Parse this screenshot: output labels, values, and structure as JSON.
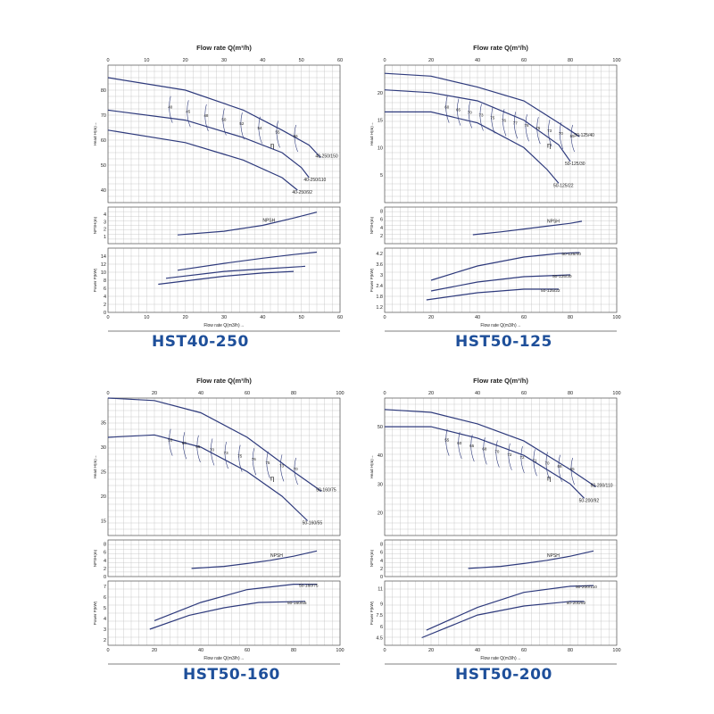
{
  "charts": [
    {
      "model": "HST40-250",
      "top_axis_title": "Flow rate Q(m³/h)",
      "bottom_axis_title": "Flow rate Q(m3/h)→",
      "head_axis_label": "Head H(m)→",
      "npsh_axis_label": "NPSH(m)",
      "power_axis_label": "Power P(kW)",
      "npsh_curve_label": "NPSH",
      "eta_label": "η",
      "x_ticks": [
        "0",
        "10",
        "20",
        "30",
        "40",
        "50",
        "60"
      ],
      "xmax": 60,
      "head_ticks": [
        "40",
        "50",
        "60",
        "70",
        "80"
      ],
      "head_range": [
        35,
        90
      ],
      "npsh_ticks": [
        "1",
        "2",
        "3",
        "4"
      ],
      "npsh_range": [
        0,
        5
      ],
      "power_ticks": [
        "0",
        "2",
        "4",
        "6",
        "8",
        "10",
        "12",
        "14"
      ],
      "power_range": [
        0,
        16
      ],
      "head_curves": [
        {
          "name": "40-250/150",
          "points": [
            [
              0,
              85
            ],
            [
              20,
              80
            ],
            [
              35,
              72
            ],
            [
              45,
              64
            ],
            [
              52,
              58
            ],
            [
              55,
              53
            ]
          ]
        },
        {
          "name": "40-250/110",
          "points": [
            [
              0,
              72
            ],
            [
              20,
              68
            ],
            [
              35,
              61
            ],
            [
              45,
              55
            ],
            [
              50,
              49
            ],
            [
              52,
              45
            ]
          ]
        },
        {
          "name": "40-250/92",
          "points": [
            [
              0,
              64
            ],
            [
              20,
              59
            ],
            [
              35,
              52
            ],
            [
              45,
              45
            ],
            [
              49,
              40
            ]
          ]
        }
      ],
      "efficiency_labels": [
        "40",
        "45",
        "48",
        "50",
        "52",
        "54",
        "55",
        "56"
      ],
      "npsh_curve": [
        [
          18,
          1.2
        ],
        [
          30,
          1.7
        ],
        [
          40,
          2.5
        ],
        [
          48,
          3.5
        ],
        [
          54,
          4.3
        ]
      ],
      "power_curves": [
        {
          "name": "",
          "points": [
            [
              18,
              10.5
            ],
            [
              30,
              12.2
            ],
            [
              40,
              13.5
            ],
            [
              48,
              14.4
            ],
            [
              54,
              15.0
            ]
          ]
        },
        {
          "name": "",
          "points": [
            [
              15,
              8.5
            ],
            [
              30,
              10.2
            ],
            [
              40,
              10.8
            ],
            [
              50,
              11.4
            ],
            [
              51,
              11.5
            ]
          ]
        },
        {
          "name": "",
          "points": [
            [
              13,
              7.0
            ],
            [
              30,
              9.0
            ],
            [
              40,
              9.8
            ],
            [
              48,
              10.2
            ]
          ]
        }
      ]
    },
    {
      "model": "HST50-125",
      "top_axis_title": "Flow rate Q(m³/h)",
      "bottom_axis_title": "Flow rate Q(m3/h)→",
      "head_axis_label": "Head H(m)→",
      "npsh_axis_label": "NPSH(m)",
      "power_axis_label": "Power P(kW)",
      "npsh_curve_label": "NPSH",
      "eta_label": "η",
      "x_ticks": [
        "0",
        "20",
        "40",
        "60",
        "80",
        "100"
      ],
      "xmax": 100,
      "head_ticks": [
        "5",
        "10",
        "15",
        "20"
      ],
      "head_range": [
        0,
        25
      ],
      "npsh_ticks": [
        "2",
        "4",
        "6",
        "8"
      ],
      "npsh_range": [
        0,
        9
      ],
      "power_ticks": [
        "1.2",
        "1.8",
        "2.4",
        "3",
        "3.6",
        "4.2"
      ],
      "power_range": [
        0.9,
        4.5
      ],
      "head_curves": [
        {
          "name": "50-125/40",
          "points": [
            [
              0,
              23.5
            ],
            [
              20,
              23.0
            ],
            [
              40,
              21.0
            ],
            [
              60,
              18.5
            ],
            [
              75,
              14.5
            ],
            [
              84,
              12.0
            ]
          ]
        },
        {
          "name": "50-125/30",
          "points": [
            [
              0,
              20.5
            ],
            [
              20,
              20.0
            ],
            [
              40,
              18.5
            ],
            [
              60,
              15.0
            ],
            [
              75,
              10.5
            ],
            [
              80,
              7.5
            ]
          ]
        },
        {
          "name": "50-125/22",
          "points": [
            [
              0,
              16.5
            ],
            [
              20,
              16.5
            ],
            [
              40,
              14.5
            ],
            [
              60,
              10.0
            ],
            [
              70,
              6.0
            ],
            [
              75,
              3.5
            ]
          ]
        }
      ],
      "efficiency_labels": [
        "60",
        "65",
        "70",
        "73",
        "75",
        "76",
        "77",
        "78",
        "75",
        "73",
        "70",
        "65"
      ],
      "npsh_curve": [
        [
          38,
          2.2
        ],
        [
          50,
          2.9
        ],
        [
          60,
          3.6
        ],
        [
          70,
          4.3
        ],
        [
          80,
          5.0
        ],
        [
          85,
          5.5
        ]
      ],
      "power_curves": [
        {
          "name": "50-125/40",
          "points": [
            [
              20,
              2.7
            ],
            [
              40,
              3.5
            ],
            [
              60,
              4.0
            ],
            [
              75,
              4.2
            ],
            [
              84,
              4.25
            ]
          ]
        },
        {
          "name": "50-125/30",
          "points": [
            [
              20,
              2.1
            ],
            [
              40,
              2.6
            ],
            [
              60,
              2.9
            ],
            [
              80,
              3.0
            ]
          ]
        },
        {
          "name": "50-125/22",
          "points": [
            [
              18,
              1.6
            ],
            [
              40,
              2.0
            ],
            [
              60,
              2.2
            ],
            [
              75,
              2.2
            ]
          ]
        }
      ]
    },
    {
      "model": "HST50-160",
      "top_axis_title": "Flow rate Q(m³/h)",
      "bottom_axis_title": "Flow rate Q(m3/h)→",
      "head_axis_label": "Head H(m)→",
      "npsh_axis_label": "NPSH(m)",
      "power_axis_label": "Power P(kW)",
      "npsh_curve_label": "NPSH",
      "eta_label": "η",
      "x_ticks": [
        "0",
        "20",
        "40",
        "60",
        "80",
        "100"
      ],
      "xmax": 100,
      "head_ticks": [
        "15",
        "20",
        "25",
        "30",
        "35"
      ],
      "head_range": [
        12,
        40
      ],
      "npsh_ticks": [
        "0",
        "2",
        "4",
        "6",
        "8"
      ],
      "npsh_range": [
        0,
        9
      ],
      "power_ticks": [
        "2",
        "3",
        "4",
        "5",
        "6",
        "7"
      ],
      "power_range": [
        1.5,
        7.5
      ],
      "head_curves": [
        {
          "name": "50-160/75",
          "points": [
            [
              0,
              40
            ],
            [
              20,
              39.5
            ],
            [
              40,
              37
            ],
            [
              60,
              32
            ],
            [
              80,
              25
            ],
            [
              92,
              21
            ]
          ]
        },
        {
          "name": "50-160/55",
          "points": [
            [
              0,
              32
            ],
            [
              20,
              32.5
            ],
            [
              40,
              30
            ],
            [
              60,
              25
            ],
            [
              75,
              20
            ],
            [
              86,
              15
            ]
          ]
        }
      ],
      "efficiency_labels": [
        "55",
        "60",
        "65",
        "70",
        "73",
        "75",
        "76",
        "75",
        "73",
        "70"
      ],
      "npsh_curve": [
        [
          36,
          2.0
        ],
        [
          50,
          2.5
        ],
        [
          60,
          3.2
        ],
        [
          70,
          4.0
        ],
        [
          80,
          5.0
        ],
        [
          90,
          6.3
        ]
      ],
      "power_curves": [
        {
          "name": "50-160/75",
          "points": [
            [
              20,
              3.8
            ],
            [
              40,
              5.5
            ],
            [
              60,
              6.7
            ],
            [
              80,
              7.2
            ],
            [
              90,
              7.2
            ]
          ]
        },
        {
          "name": "50-160/55",
          "points": [
            [
              18,
              3.0
            ],
            [
              35,
              4.3
            ],
            [
              50,
              5.0
            ],
            [
              65,
              5.5
            ],
            [
              85,
              5.6
            ]
          ]
        }
      ]
    },
    {
      "model": "HST50-200",
      "top_axis_title": "Flow rate Q(m³/h)",
      "bottom_axis_title": "Flow rate Q(m3/h)→",
      "head_axis_label": "Head H(m)→",
      "npsh_axis_label": "NPSH(m)",
      "power_axis_label": "Power P(kW)",
      "npsh_curve_label": "NPSH",
      "eta_label": "η",
      "x_ticks": [
        "0",
        "20",
        "40",
        "60",
        "80",
        "100"
      ],
      "xmax": 100,
      "head_ticks": [
        "20",
        "30",
        "40",
        "50"
      ],
      "head_range": [
        12,
        60
      ],
      "npsh_ticks": [
        "0",
        "2",
        "4",
        "6",
        "8"
      ],
      "npsh_range": [
        0,
        9
      ],
      "power_ticks": [
        "4.5",
        "6",
        "7.5",
        "9",
        "11"
      ],
      "power_range": [
        3.5,
        12
      ],
      "head_curves": [
        {
          "name": "50-200/110",
          "points": [
            [
              0,
              56
            ],
            [
              20,
              55
            ],
            [
              40,
              51
            ],
            [
              60,
              45
            ],
            [
              80,
              35
            ],
            [
              91,
              29
            ]
          ]
        },
        {
          "name": "50-200/92",
          "points": [
            [
              0,
              50
            ],
            [
              20,
              50
            ],
            [
              40,
              46
            ],
            [
              60,
              40
            ],
            [
              80,
              30
            ],
            [
              86,
              25
            ]
          ]
        }
      ],
      "efficiency_labels": [
        "55",
        "60",
        "65",
        "68",
        "70",
        "72",
        "72",
        "71",
        "70",
        "68",
        "65"
      ],
      "npsh_curve": [
        [
          36,
          2.0
        ],
        [
          50,
          2.5
        ],
        [
          60,
          3.2
        ],
        [
          70,
          4.0
        ],
        [
          80,
          5.0
        ],
        [
          90,
          6.3
        ]
      ],
      "power_curves": [
        {
          "name": "50-200/110",
          "points": [
            [
              18,
              5.5
            ],
            [
              40,
              8.5
            ],
            [
              60,
              10.5
            ],
            [
              80,
              11.3
            ],
            [
              90,
              11.4
            ]
          ]
        },
        {
          "name": "50-200/92",
          "points": [
            [
              16,
              4.5
            ],
            [
              40,
              7.5
            ],
            [
              60,
              8.7
            ],
            [
              80,
              9.3
            ],
            [
              86,
              9.3
            ]
          ]
        }
      ]
    }
  ],
  "chart_data": [
    {
      "type": "line",
      "title": "HST40-250",
      "xlabel": "Flow rate Q(m³/h)",
      "xlim": [
        0,
        60
      ],
      "series": [
        {
          "name": "40-250/150",
          "x": [
            0,
            20,
            35,
            45,
            52,
            55
          ],
          "y": [
            85,
            80,
            72,
            64,
            58,
            53
          ]
        },
        {
          "name": "40-250/110",
          "x": [
            0,
            20,
            35,
            45,
            50,
            52
          ],
          "y": [
            72,
            68,
            61,
            55,
            49,
            45
          ]
        },
        {
          "name": "40-250/92",
          "x": [
            0,
            20,
            35,
            45,
            49
          ],
          "y": [
            64,
            59,
            52,
            45,
            40
          ]
        },
        {
          "name": "NPSH",
          "x": [
            18,
            30,
            40,
            48,
            54
          ],
          "y": [
            1.2,
            1.7,
            2.5,
            3.5,
            4.3
          ]
        }
      ]
    },
    {
      "type": "line",
      "title": "HST50-125",
      "xlabel": "Flow rate Q(m³/h)",
      "xlim": [
        0,
        100
      ],
      "series": [
        {
          "name": "50-125/40",
          "x": [
            0,
            20,
            40,
            60,
            75,
            84
          ],
          "y": [
            23.5,
            23,
            21,
            18.5,
            14.5,
            12
          ]
        },
        {
          "name": "50-125/30",
          "x": [
            0,
            20,
            40,
            60,
            75,
            80
          ],
          "y": [
            20.5,
            20,
            18.5,
            15,
            10.5,
            7.5
          ]
        },
        {
          "name": "50-125/22",
          "x": [
            0,
            20,
            40,
            60,
            70,
            75
          ],
          "y": [
            16.5,
            16.5,
            14.5,
            10,
            6,
            3.5
          ]
        },
        {
          "name": "NPSH",
          "x": [
            38,
            50,
            60,
            70,
            80,
            85
          ],
          "y": [
            2.2,
            2.9,
            3.6,
            4.3,
            5,
            5.5
          ]
        }
      ]
    },
    {
      "type": "line",
      "title": "HST50-160",
      "xlabel": "Flow rate Q(m³/h)",
      "xlim": [
        0,
        100
      ],
      "series": [
        {
          "name": "50-160/75",
          "x": [
            0,
            20,
            40,
            60,
            80,
            92
          ],
          "y": [
            40,
            39.5,
            37,
            32,
            25,
            21
          ]
        },
        {
          "name": "50-160/55",
          "x": [
            0,
            20,
            40,
            60,
            75,
            86
          ],
          "y": [
            32,
            32.5,
            30,
            25,
            20,
            15
          ]
        },
        {
          "name": "NPSH",
          "x": [
            36,
            50,
            60,
            70,
            80,
            90
          ],
          "y": [
            2,
            2.5,
            3.2,
            4,
            5,
            6.3
          ]
        }
      ]
    },
    {
      "type": "line",
      "title": "HST50-200",
      "xlabel": "Flow rate Q(m³/h)",
      "xlim": [
        0,
        100
      ],
      "series": [
        {
          "name": "50-200/110",
          "x": [
            0,
            20,
            40,
            60,
            80,
            91
          ],
          "y": [
            56,
            55,
            51,
            45,
            35,
            29
          ]
        },
        {
          "name": "50-200/92",
          "x": [
            0,
            20,
            40,
            60,
            80,
            86
          ],
          "y": [
            50,
            50,
            46,
            40,
            30,
            25
          ]
        },
        {
          "name": "NPSH",
          "x": [
            36,
            50,
            60,
            70,
            80,
            90
          ],
          "y": [
            2,
            2.5,
            3.2,
            4,
            5,
            6.3
          ]
        }
      ]
    }
  ],
  "colors": {
    "curve": "#2e3a7c",
    "grid": "#b9b9b9",
    "frame": "#555555",
    "title": "#1e4f9a",
    "text": "#222222"
  }
}
